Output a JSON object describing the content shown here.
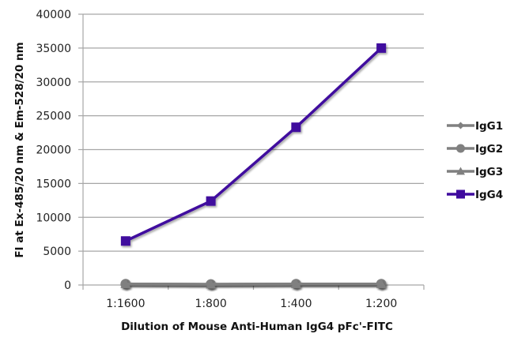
{
  "chart_data": {
    "type": "line",
    "title": "",
    "xlabel": "Dilution of Mouse Anti-Human IgG4 pFc'-FITC",
    "ylabel": "FI at Ex-485/20 nm & Em-528/20 nm",
    "categories": [
      "1:1600",
      "1:800",
      "1:400",
      "1:200"
    ],
    "ylim": [
      0,
      40000
    ],
    "yticks": [
      0,
      5000,
      10000,
      15000,
      20000,
      25000,
      30000,
      35000,
      40000
    ],
    "grid": "horizontal",
    "legend_position": "right",
    "series": [
      {
        "name": "IgG1",
        "marker": "diamond",
        "color": "#808080",
        "values": [
          150,
          100,
          150,
          150
        ]
      },
      {
        "name": "IgG2",
        "marker": "circle",
        "color": "#808080",
        "values": [
          150,
          100,
          150,
          150
        ]
      },
      {
        "name": "IgG3",
        "marker": "triangle",
        "color": "#808080",
        "values": [
          150,
          100,
          150,
          150
        ]
      },
      {
        "name": "IgG4",
        "marker": "square",
        "color": "#3f0a9e",
        "values": [
          6500,
          12400,
          23300,
          35000
        ]
      }
    ]
  }
}
